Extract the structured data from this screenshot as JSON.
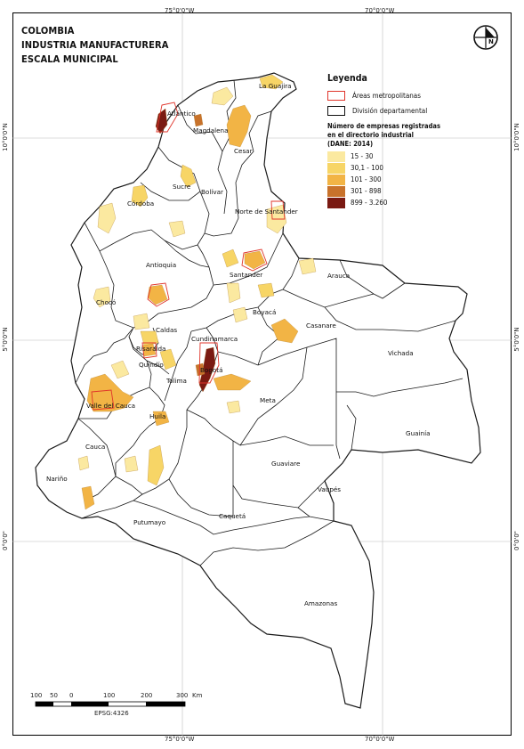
{
  "title": [
    "COLOMBIA",
    "INDUSTRIA MANUFACTURERA",
    "ESCALA MUNICIPAL"
  ],
  "graticule": {
    "top": [
      "75°0'0\"W",
      "70°0'0\"W"
    ],
    "bottom": [
      "75°0'0\"W",
      "70°0'0\"W"
    ],
    "left": [
      "10°0'0\"N",
      "5°0'0\"N",
      "0°0'0\""
    ],
    "right": [
      "10°0'0\"N",
      "5°0'0\"N",
      "0°0'0\""
    ]
  },
  "legend": {
    "title": "Leyenda",
    "metro": "Áreas metropolitanas",
    "dept": "División departamental",
    "class_heading": [
      "Número de empresas registradas",
      "en el directorio industrial",
      "(DANE: 2014)"
    ],
    "classes": [
      {
        "label": "15 - 30",
        "color": "#fbe9a0"
      },
      {
        "label": "30,1 - 100",
        "color": "#f7d566"
      },
      {
        "label": "101 - 300",
        "color": "#f2b445"
      },
      {
        "label": "301 - 898",
        "color": "#c8722b"
      },
      {
        "label": "899 - 3.260",
        "color": "#7a1a12"
      }
    ],
    "metro_color": "#e0342a"
  },
  "departments": [
    "La Guajira",
    "Atlántico",
    "Magdalena",
    "Cesar",
    "Sucre",
    "Bolívar",
    "Córdoba",
    "Norte de Santander",
    "Antioquia",
    "Santander",
    "Arauca",
    "Chocó",
    "Boyacá",
    "Casanare",
    "Caldas",
    "Cundinamarca",
    "Risaralda",
    "Quindío",
    "Bogotá",
    "Vichada",
    "Valle del Cauca",
    "Tolima",
    "Meta",
    "Guainía",
    "Huila",
    "Cauca",
    "Guaviare",
    "Nariño",
    "Vaupés",
    "Caquetá",
    "Putumayo",
    "Amazonas"
  ],
  "scale": {
    "ticks": [
      "100",
      "50",
      "0",
      "100",
      "200",
      "300"
    ],
    "unit": "Km",
    "epsg": "EPSG:4326"
  },
  "north_arrow": "N"
}
